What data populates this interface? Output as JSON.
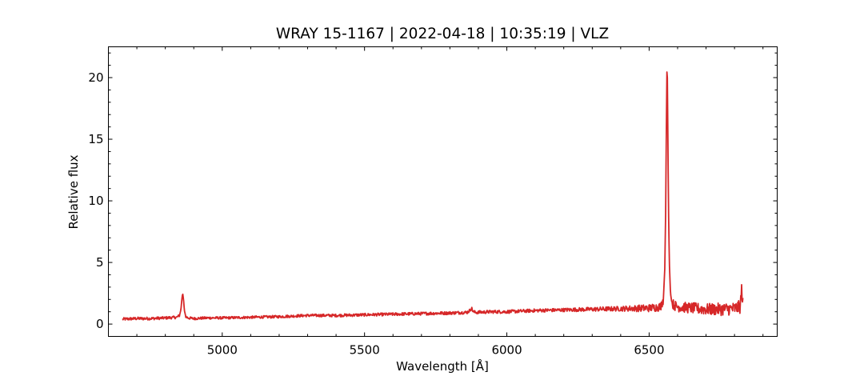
{
  "chart_data": {
    "type": "line",
    "title": "WRAY 15-1167 | 2022-04-18 | 10:35:19 | VLZ",
    "xlabel": "Wavelength [Å]",
    "ylabel": "Relative flux",
    "xlim": [
      4600,
      6950
    ],
    "ylim": [
      -1.0,
      22.5
    ],
    "x_ticks": [
      5000,
      5500,
      6000,
      6500
    ],
    "x_tick_labels": [
      "5000",
      "5500",
      "6000",
      "6500"
    ],
    "y_ticks": [
      0,
      5,
      10,
      15,
      20
    ],
    "y_tick_labels": [
      "0",
      "5",
      "10",
      "15",
      "20"
    ],
    "grid": false,
    "legend": "none",
    "series": [
      {
        "color": "#d62728",
        "x_range": [
          4650,
          6830
        ],
        "x": [
          4650,
          4700,
          4750,
          4800,
          4840,
          4850,
          4855,
          4858,
          4861,
          4864,
          4867,
          4872,
          4880,
          4900,
          4950,
          5000,
          5100,
          5200,
          5300,
          5400,
          5500,
          5600,
          5700,
          5800,
          5860,
          5870,
          5876,
          5882,
          5890,
          5950,
          6000,
          6100,
          6200,
          6300,
          6400,
          6500,
          6540,
          6550,
          6555,
          6558,
          6560,
          6562,
          6563,
          6564,
          6566,
          6568,
          6571,
          6575,
          6580,
          6590,
          6600,
          6650,
          6700,
          6750,
          6800,
          6820,
          6825,
          6830
        ],
        "y": [
          0.4,
          0.45,
          0.45,
          0.5,
          0.55,
          0.7,
          1.2,
          2.0,
          2.5,
          2.0,
          1.1,
          0.6,
          0.5,
          0.45,
          0.5,
          0.5,
          0.55,
          0.6,
          0.7,
          0.7,
          0.75,
          0.8,
          0.85,
          0.9,
          0.95,
          1.1,
          1.3,
          1.0,
          0.95,
          1.0,
          1.0,
          1.1,
          1.15,
          1.2,
          1.25,
          1.3,
          1.4,
          2.0,
          4.5,
          9.0,
          14.5,
          19.5,
          21.4,
          20.0,
          15.0,
          9.5,
          5.0,
          2.5,
          1.7,
          1.5,
          1.4,
          1.3,
          1.2,
          1.2,
          1.25,
          1.4,
          2.8,
          1.5
        ],
        "noise_amplitude": [
          [
            4650,
            0.12
          ],
          [
            5000,
            0.1
          ],
          [
            6200,
            0.14
          ],
          [
            6400,
            0.2
          ],
          [
            6580,
            0.4
          ],
          [
            6830,
            0.55
          ]
        ]
      }
    ]
  }
}
